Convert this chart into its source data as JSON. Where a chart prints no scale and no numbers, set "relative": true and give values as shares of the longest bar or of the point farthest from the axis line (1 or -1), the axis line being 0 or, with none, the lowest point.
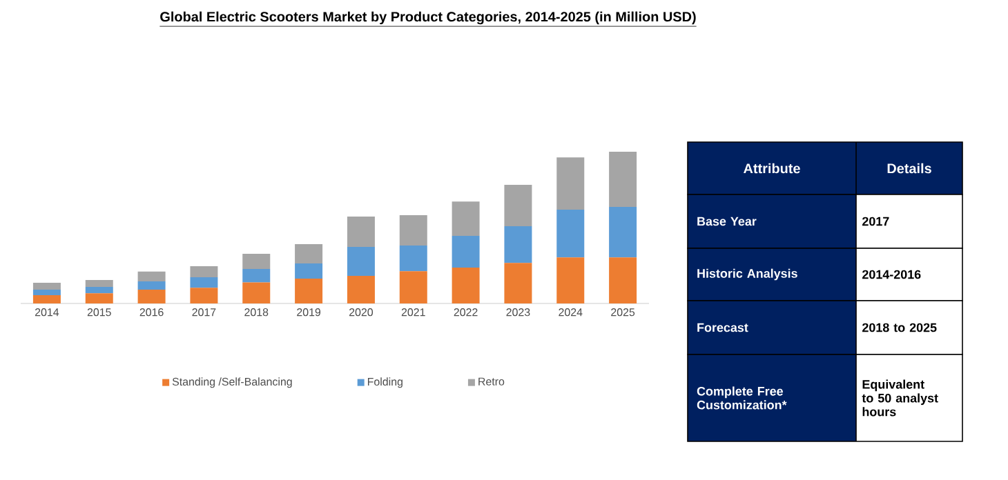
{
  "chart_data": [
    {
      "type": "bar",
      "title": "Global Electric Scooters Market by Product Categories, 2014-2025 (in Million USD)",
      "stacked": true,
      "relative": true,
      "legend": "bottom",
      "categories": [
        "2014",
        "2015",
        "2016",
        "2017",
        "2018",
        "2019",
        "2020",
        "2021",
        "2022",
        "2023",
        "2024",
        "2025"
      ],
      "series": [
        {
          "name": "Standing /Self-Balancing",
          "color": "#ed7d31",
          "values": [
            0.055,
            0.067,
            0.091,
            0.103,
            0.139,
            0.164,
            0.182,
            0.212,
            0.236,
            0.267,
            0.303,
            0.303
          ]
        },
        {
          "name": "Folding",
          "color": "#5b9bd5",
          "values": [
            0.036,
            0.042,
            0.055,
            0.07,
            0.088,
            0.1,
            0.191,
            0.17,
            0.209,
            0.242,
            0.315,
            0.333
          ]
        },
        {
          "name": "Retro",
          "color": "#a5a5a5",
          "values": [
            0.045,
            0.045,
            0.064,
            0.073,
            0.1,
            0.127,
            0.2,
            0.2,
            0.227,
            0.273,
            0.345,
            0.364
          ]
        }
      ]
    },
    {
      "type": "other",
      "annotations": [
        "Attribute",
        "Details",
        "Base Year",
        "2017",
        "Historic Analysis",
        "2014-2016",
        "Forecast",
        "2018 to 2025",
        "Complete Free Customization*",
        "Equivalent to 50 analyst hours"
      ]
    }
  ]
}
